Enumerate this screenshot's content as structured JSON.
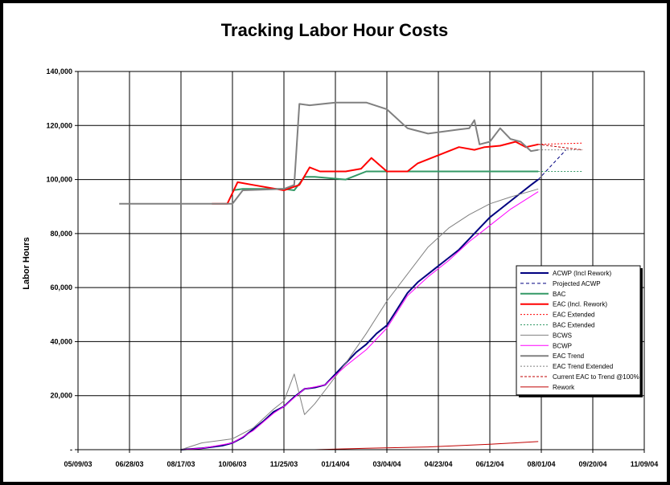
{
  "chart_data": {
    "type": "line",
    "title": "Tracking Labor Hour Costs",
    "xlabel": "",
    "ylabel": "Labor Hours",
    "x_ticks": [
      "05/09/03",
      "06/28/03",
      "08/17/03",
      "10/06/03",
      "11/25/03",
      "01/14/04",
      "03/04/04",
      "04/23/04",
      "06/12/04",
      "08/01/04",
      "09/20/04",
      "11/09/04"
    ],
    "xlim": [
      "05/09/03",
      "11/09/04"
    ],
    "y_ticks": [
      "-",
      "20,000",
      "40,000",
      "60,000",
      "80,000",
      "100,000",
      "120,000",
      "140,000"
    ],
    "ylim": [
      0,
      140000
    ],
    "grid": true,
    "legend_position": "right",
    "series": [
      {
        "name": "ACWP (Incl Rework)",
        "color": "#000080",
        "dash": "solid",
        "width": 2,
        "x": [
          "08/17/03",
          "09/06/03",
          "09/26/03",
          "10/06/03",
          "10/16/03",
          "10/26/03",
          "11/05/03",
          "11/15/03",
          "11/25/03",
          "12/05/03",
          "12/15/03",
          "12/25/03",
          "01/04/04",
          "01/14/04",
          "01/24/04",
          "02/03/04",
          "02/13/04",
          "02/23/04",
          "03/04/04",
          "03/14/04",
          "03/24/04",
          "04/03/04",
          "04/13/04",
          "04/23/04",
          "05/03/04",
          "05/13/04",
          "05/23/04",
          "06/02/04",
          "06/12/04",
          "06/22/04",
          "07/02/04",
          "07/12/04",
          "07/22/04",
          "07/29/04"
        ],
        "y": [
          0,
          500,
          1500,
          2500,
          4500,
          7500,
          10500,
          14000,
          16000,
          19500,
          22500,
          23000,
          24000,
          28000,
          32000,
          36000,
          39000,
          43000,
          46000,
          52000,
          58000,
          62000,
          65000,
          68000,
          71000,
          74000,
          78000,
          82000,
          86000,
          89000,
          92000,
          95000,
          98000,
          100000
        ]
      },
      {
        "name": "Projected ACWP",
        "color": "#000080",
        "dash": "4,3",
        "width": 1,
        "x": [
          "07/29/04",
          "08/25/04"
        ],
        "y": [
          100000,
          111000
        ]
      },
      {
        "name": "BAC",
        "color": "#339966",
        "dash": "solid",
        "width": 2,
        "x": [
          "10/06/03",
          "10/16/03",
          "11/25/03",
          "12/05/03",
          "12/15/03",
          "12/25/03",
          "01/24/04",
          "02/13/04",
          "03/04/04",
          "07/29/04"
        ],
        "y": [
          96000,
          96500,
          96500,
          96000,
          101000,
          101000,
          100000,
          103000,
          103000,
          103000
        ]
      },
      {
        "name": "EAC (Incl. Rework)",
        "color": "#FF0000",
        "dash": "solid",
        "width": 2,
        "x": [
          "09/16/03",
          "10/01/03",
          "10/11/03",
          "10/26/03",
          "11/25/03",
          "12/10/03",
          "12/20/03",
          "12/30/03",
          "01/14/04",
          "01/24/04",
          "02/08/04",
          "02/18/04",
          "03/04/04",
          "03/24/04",
          "04/03/04",
          "04/23/04",
          "05/13/04",
          "05/28/04",
          "06/07/04",
          "06/22/04",
          "07/07/04",
          "07/17/04",
          "07/29/04"
        ],
        "y": [
          91000,
          91000,
          99000,
          98000,
          96000,
          98000,
          104500,
          103000,
          103000,
          103000,
          104000,
          108000,
          103000,
          103000,
          106000,
          109000,
          112000,
          111000,
          112000,
          112500,
          114000,
          112000,
          113000
        ]
      },
      {
        "name": "EAC Extended",
        "color": "#FF0000",
        "dash": "2,2",
        "width": 1,
        "x": [
          "07/29/04",
          "09/10/04"
        ],
        "y": [
          113000,
          113500
        ]
      },
      {
        "name": "BAC Extended",
        "color": "#339966",
        "dash": "2,2",
        "width": 1,
        "x": [
          "07/29/04",
          "09/10/04"
        ],
        "y": [
          103000,
          103000
        ]
      },
      {
        "name": "BCWS",
        "color": "#808080",
        "dash": "solid",
        "width": 1,
        "x": [
          "08/17/03",
          "09/06/03",
          "10/06/03",
          "10/26/03",
          "11/15/03",
          "11/25/03",
          "12/05/03",
          "12/15/03",
          "12/25/03",
          "01/04/04",
          "01/24/04",
          "02/13/04",
          "03/04/04",
          "03/24/04",
          "04/13/04",
          "05/03/04",
          "05/23/04",
          "06/12/04",
          "07/02/04",
          "07/29/04"
        ],
        "y": [
          0,
          2500,
          4000,
          8000,
          15000,
          18000,
          28000,
          13000,
          17000,
          22000,
          32000,
          43000,
          55000,
          65000,
          75000,
          82000,
          87000,
          91000,
          93500,
          96500
        ]
      },
      {
        "name": "BCWP",
        "color": "#FF00FF",
        "dash": "solid",
        "width": 1,
        "x": [
          "08/17/03",
          "09/06/03",
          "10/06/03",
          "10/26/03",
          "11/15/03",
          "11/25/03",
          "12/15/03",
          "01/04/04",
          "01/24/04",
          "02/13/04",
          "03/04/04",
          "03/24/04",
          "04/13/04",
          "05/03/04",
          "05/23/04",
          "06/12/04",
          "07/02/04",
          "07/29/04"
        ],
        "y": [
          0,
          500,
          2500,
          7000,
          13500,
          16000,
          22500,
          24000,
          31000,
          37000,
          45000,
          57000,
          64000,
          70000,
          77000,
          83000,
          89000,
          95500
        ]
      },
      {
        "name": "EAC Trend",
        "color": "#808080",
        "dash": "solid",
        "width": 2,
        "x": [
          "06/18/03",
          "10/06/03",
          "10/16/03",
          "11/25/03",
          "12/05/03",
          "12/10/03",
          "12/20/03",
          "01/14/04",
          "02/13/04",
          "03/04/04",
          "03/24/04",
          "04/13/04",
          "05/13/04",
          "05/23/04",
          "05/28/04",
          "06/02/04",
          "06/12/04",
          "06/22/04",
          "07/02/04",
          "07/12/04",
          "07/22/04",
          "07/29/04"
        ],
        "y": [
          91000,
          91000,
          96000,
          96500,
          98000,
          128000,
          127500,
          128500,
          128500,
          126000,
          119000,
          117000,
          118500,
          119000,
          122000,
          113000,
          114000,
          119000,
          115000,
          114000,
          110500,
          111000
        ]
      },
      {
        "name": "EAC Trend Extended",
        "color": "#808080",
        "dash": "2,2",
        "width": 1,
        "x": [
          "07/29/04",
          "09/10/04"
        ],
        "y": [
          111000,
          111000
        ]
      },
      {
        "name": "Current EAC to Trend @100%",
        "color": "#C00000",
        "dash": "3,2",
        "width": 1,
        "x": [
          "07/29/04",
          "09/10/04"
        ],
        "y": [
          113000,
          111000
        ]
      },
      {
        "name": "Rework",
        "color": "#C00000",
        "dash": "solid",
        "width": 1,
        "x": [
          "12/25/03",
          "02/13/04",
          "04/13/04",
          "06/12/04",
          "07/29/04"
        ],
        "y": [
          0,
          500,
          1000,
          2000,
          3000
        ]
      }
    ]
  }
}
